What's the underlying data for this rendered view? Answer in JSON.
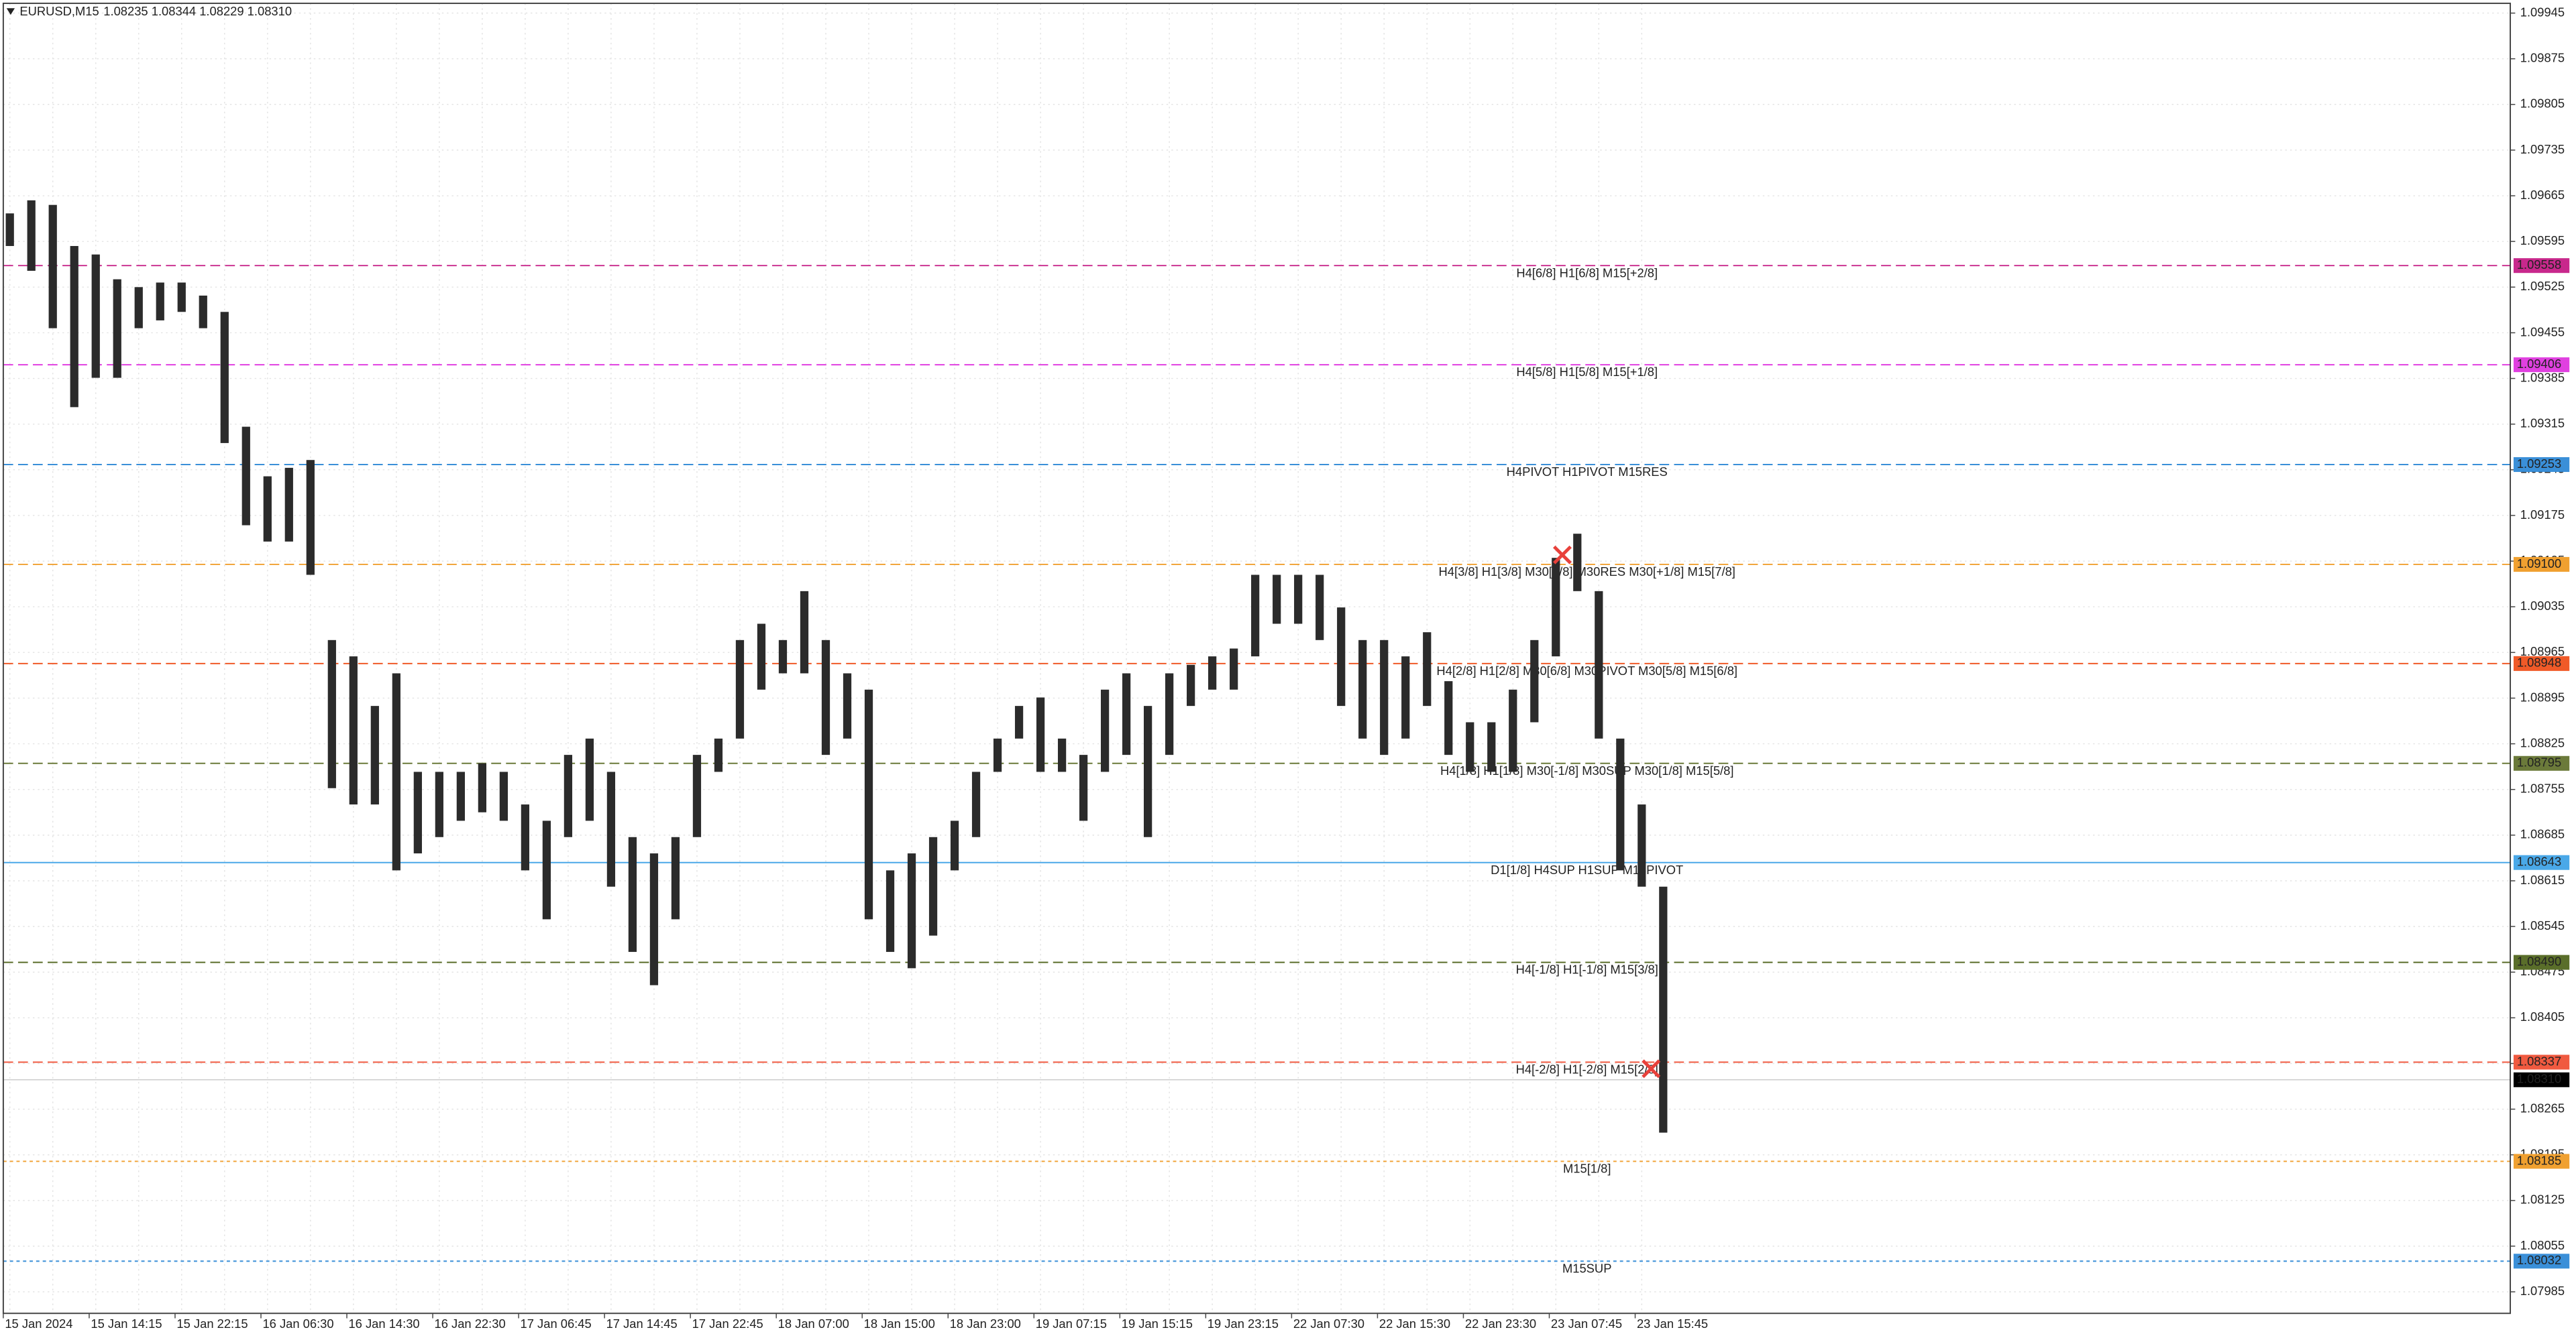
{
  "chart_data": {
    "type": "hilo",
    "title": "EURUSD,M15",
    "quote": "1.08235 1.08344 1.08229 1.08310",
    "color": "#2b2b2b",
    "categories": [
      "15 Jan 2024",
      null,
      null,
      null,
      "15 Jan 14:15",
      null,
      null,
      null,
      "15 Jan 22:15",
      null,
      null,
      null,
      "16 Jan 06:30",
      null,
      null,
      null,
      "16 Jan 14:30",
      null,
      null,
      null,
      "16 Jan 22:30",
      null,
      null,
      null,
      "17 Jan 06:45",
      null,
      null,
      null,
      "17 Jan 14:45",
      null,
      null,
      null,
      "17 Jan 22:45",
      null,
      null,
      null,
      "18 Jan 07:00",
      null,
      null,
      null,
      "18 Jan 15:00",
      null,
      null,
      null,
      "18 Jan 23:00",
      null,
      null,
      null,
      "19 Jan 07:15",
      null,
      null,
      null,
      "19 Jan 15:15",
      null,
      null,
      null,
      "19 Jan 23:15",
      null,
      null,
      null,
      "22 Jan 07:30",
      null,
      null,
      null,
      "22 Jan 15:30",
      null,
      null,
      null,
      "22 Jan 23:30",
      null,
      null,
      null,
      "23 Jan 07:45",
      null,
      null,
      null,
      "23 Jan 15:45",
      null
    ],
    "high": [
      1.09638,
      1.09658,
      1.09651,
      1.09588,
      1.09575,
      1.09537,
      1.09525,
      1.09532,
      1.09532,
      1.09512,
      1.09487,
      1.09311,
      1.09235,
      1.09248,
      1.0926,
      1.08984,
      1.08959,
      1.08883,
      1.08933,
      1.08782,
      1.08782,
      1.08782,
      1.08795,
      1.08782,
      1.08732,
      1.08707,
      1.08808,
      1.08833,
      1.08782,
      1.08682,
      1.08657,
      1.08682,
      1.08808,
      1.08833,
      1.08984,
      1.09009,
      1.08984,
      1.09059,
      1.08984,
      1.08933,
      1.08908,
      1.08631,
      1.08657,
      1.08682,
      1.08707,
      1.08782,
      1.08833,
      1.08883,
      1.08896,
      1.08833,
      1.08808,
      1.08908,
      1.08933,
      1.08883,
      1.08933,
      1.08946,
      1.08959,
      1.08971,
      1.09084,
      1.09084,
      1.09084,
      1.09084,
      1.09034,
      1.08984,
      1.08984,
      1.08959,
      1.08996,
      1.08921,
      1.08858,
      1.08858,
      1.08908,
      1.08984,
      1.0911,
      1.09147,
      1.09059,
      1.08833,
      1.08732,
      1.08606
    ],
    "low": [
      1.09588,
      1.0955,
      1.09462,
      1.09341,
      1.09386,
      1.09386,
      1.09462,
      1.09474,
      1.09487,
      1.09462,
      1.09286,
      1.0916,
      1.09135,
      1.09135,
      1.09084,
      1.08757,
      1.08732,
      1.08732,
      1.08631,
      1.08657,
      1.08682,
      1.08707,
      1.0872,
      1.08707,
      1.08631,
      1.08556,
      1.08682,
      1.08707,
      1.08606,
      1.08506,
      1.08455,
      1.08556,
      1.08682,
      1.08782,
      1.08833,
      1.08908,
      1.08933,
      1.08933,
      1.08808,
      1.08833,
      1.08556,
      1.08506,
      1.08481,
      1.08531,
      1.08631,
      1.08682,
      1.08782,
      1.08833,
      1.08782,
      1.08782,
      1.08707,
      1.08782,
      1.08808,
      1.08682,
      1.08808,
      1.08883,
      1.08908,
      1.08908,
      1.08959,
      1.09009,
      1.09009,
      1.08984,
      1.08883,
      1.08833,
      1.08808,
      1.08833,
      1.08883,
      1.08808,
      1.08782,
      1.08782,
      1.08782,
      1.08858,
      1.08959,
      1.09059,
      1.08833,
      1.08631,
      1.08606,
      1.08229
    ],
    "ylim": [
      1.07952,
      1.0996
    ],
    "yticks": [
      1.07985,
      1.08055,
      1.08125,
      1.08195,
      1.08265,
      1.08335,
      1.08405,
      1.08475,
      1.08545,
      1.08615,
      1.08685,
      1.08755,
      1.08825,
      1.08895,
      1.08965,
      1.09035,
      1.09105,
      1.09175,
      1.09245,
      1.09315,
      1.09385,
      1.09455,
      1.09525,
      1.09595,
      1.09665,
      1.09735,
      1.09805,
      1.09875,
      1.09945
    ],
    "grid": true,
    "levels": [
      {
        "price": 1.09558,
        "text": "H4[6/8] H1[6/8] M15[+2/8]",
        "color": "#c8288c",
        "style": "dashed"
      },
      {
        "price": 1.09406,
        "text": "H4[5/8] H1[5/8] M15[+1/8]",
        "color": "#e040e0",
        "style": "dashed"
      },
      {
        "price": 1.09253,
        "text": "H4PIVOT H1PIVOT M15RES",
        "color": "#3a8fd8",
        "style": "dashed"
      },
      {
        "price": {
          "value": 1.091,
          "label": "1.09100"
        },
        "text": "H4[3/8] H1[3/8] M30[7/8] M30RES M30[+1/8] M15[7/8]",
        "color": "#f0a030",
        "style": "dashed"
      },
      {
        "price": 1.08948,
        "text": "H4[2/8] H1[2/8] M30[6/8] M30PIVOT M30[5/8] M15[6/8]",
        "color": "#f05a28",
        "style": "dashed"
      },
      {
        "price": 1.08795,
        "text": "H4[1/8] H1[1/8] M30[-1/8] M30SUP M30[1/8] M15[5/8]",
        "color": "#6b7a3a",
        "style": "dashed"
      },
      {
        "price": 1.08643,
        "text": "D1[1/8] H4SUP H1SUP M15PIVOT",
        "color": "#4aa8e8",
        "style": "solid"
      },
      {
        "price": {
          "value": 1.0849,
          "label": "1.08490"
        },
        "text": "H4[-1/8] H1[-1/8] M15[3/8]",
        "color": "#5a6e2a",
        "style": "dashed"
      },
      {
        "price": 1.08337,
        "text": "H4[-2/8] H1[-2/8] M15[2/8]",
        "color": "#f05a40",
        "style": "dashed"
      },
      {
        "price": 1.08185,
        "text": "M15[1/8]",
        "color": "#f0a030",
        "style": "dotted"
      },
      {
        "price": 1.08032,
        "text": "M15SUP",
        "color": "#3a8fd8",
        "style": "dotted"
      }
    ],
    "current_price": {
      "value": 1.0831,
      "label": "1.08310"
    }
  }
}
